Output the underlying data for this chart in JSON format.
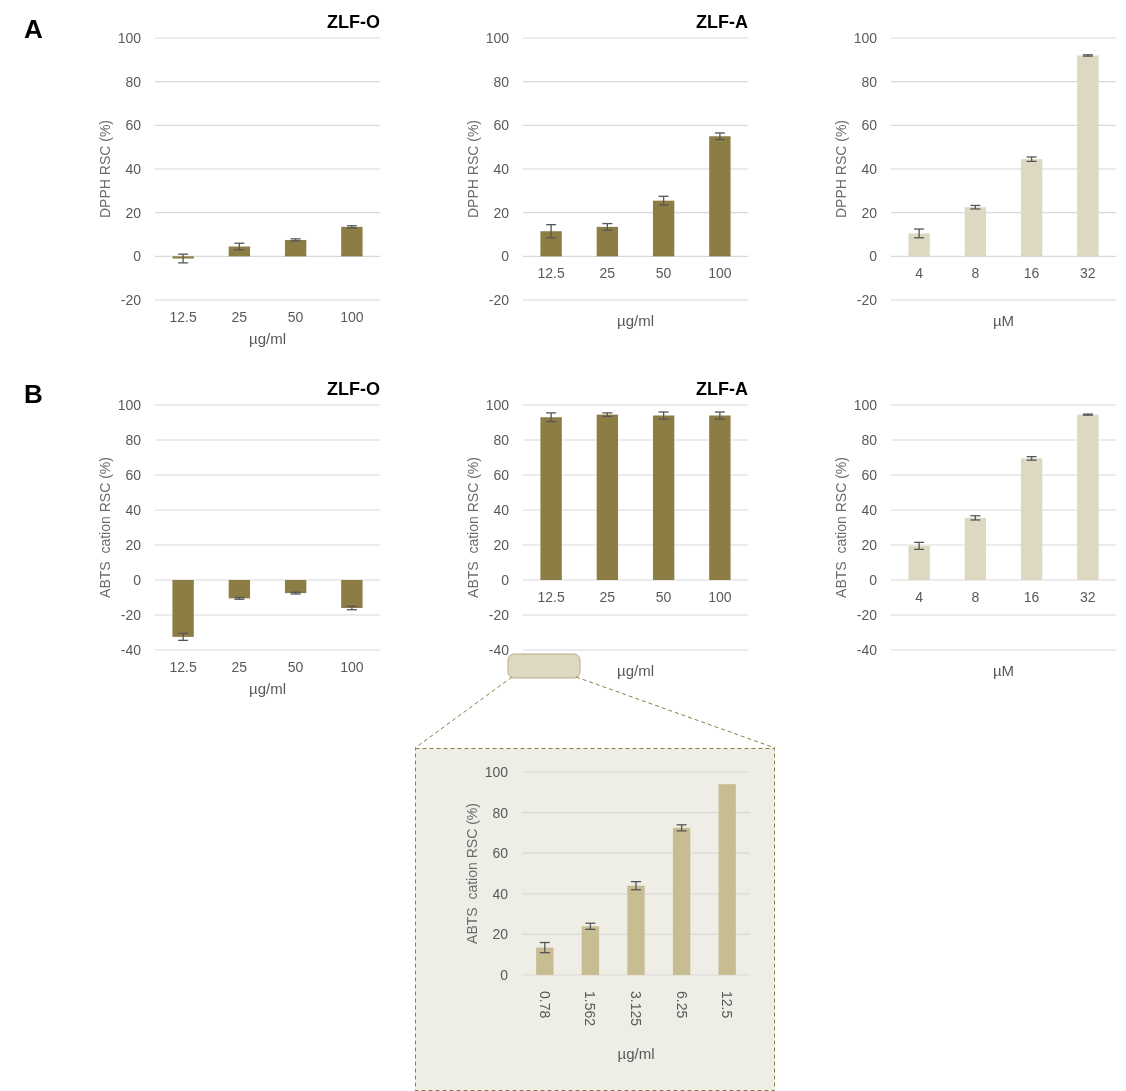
{
  "chart_data": [
    {
      "type": "bar",
      "title": "ZLF-O",
      "ylabel": "DPPH RSC (%)",
      "xlabel": "µg/ml",
      "annotations": [
        "A"
      ],
      "categories": [
        "12.5",
        "25",
        "50",
        "100"
      ],
      "values": [
        -1,
        4.5,
        7.5,
        13.5
      ],
      "errors": [
        2,
        1.5,
        0.5,
        0.5
      ],
      "color": "#8c7d45",
      "ylim": [
        -20,
        100
      ],
      "yticks": [
        -20,
        0,
        20,
        40,
        60,
        80,
        100
      ],
      "grid": "y"
    },
    {
      "type": "bar",
      "title": "ZLF-A",
      "ylabel": "DPPH RSC (%)",
      "xlabel": "µg/ml",
      "categories": [
        "12.5",
        "25",
        "50",
        "100"
      ],
      "values": [
        11.5,
        13.5,
        25.5,
        55
      ],
      "errors": [
        3,
        1.5,
        2,
        1.5
      ],
      "color": "#8c7d45",
      "ylim": [
        -20,
        100
      ],
      "yticks": [
        -20,
        0,
        20,
        40,
        60,
        80,
        100
      ],
      "grid": "y"
    },
    {
      "type": "bar",
      "ylabel": "DPPH RSC (%)",
      "xlabel": "µM",
      "categories": [
        "4",
        "8",
        "16",
        "32"
      ],
      "values": [
        10.5,
        22.5,
        44.5,
        92
      ],
      "errors": [
        2,
        0.8,
        1,
        0.3
      ],
      "color": "#ddd8c2",
      "ylim": [
        -20,
        100
      ],
      "yticks": [
        -20,
        0,
        20,
        40,
        60,
        80,
        100
      ],
      "grid": "y"
    },
    {
      "type": "bar",
      "title": "ZLF-O",
      "ylabel": "ABTS  cation RSC (%)",
      "xlabel": "µg/ml",
      "annotations": [
        "B"
      ],
      "categories": [
        "12.5",
        "25",
        "50",
        "100"
      ],
      "values": [
        -32.5,
        -10.5,
        -7.5,
        -16
      ],
      "errors": [
        2,
        0.5,
        0.5,
        1
      ],
      "color": "#8c7d45",
      "ylim": [
        -40,
        100
      ],
      "yticks": [
        -40,
        -20,
        0,
        20,
        40,
        60,
        80,
        100
      ],
      "grid": "y"
    },
    {
      "type": "bar",
      "title": "ZLF-A",
      "ylabel": "ABTS  cation RSC (%)",
      "xlabel": "µg/ml",
      "categories": [
        "12.5",
        "25",
        "50",
        "100"
      ],
      "values": [
        93,
        94.5,
        94,
        94
      ],
      "errors": [
        2.5,
        1,
        2,
        2
      ],
      "color": "#8c7d45",
      "ylim": [
        -40,
        100
      ],
      "yticks": [
        -40,
        -20,
        0,
        20,
        40,
        60,
        80,
        100
      ],
      "grid": "y"
    },
    {
      "type": "bar",
      "ylabel": "ABTS  cation RSC (%)",
      "xlabel": "µM",
      "categories": [
        "4",
        "8",
        "16",
        "32"
      ],
      "values": [
        19.5,
        35.5,
        69.5,
        94.5
      ],
      "errors": [
        2,
        1.2,
        1,
        0.3
      ],
      "color": "#ddd8c2",
      "ylim": [
        -40,
        100
      ],
      "yticks": [
        -40,
        -20,
        0,
        20,
        40,
        60,
        80,
        100
      ],
      "grid": "y"
    },
    {
      "type": "bar",
      "ylabel": "ABTS  cation RSC (%)",
      "xlabel": "µg/ml",
      "categories": [
        "0.78",
        "1.562",
        "3.125",
        "6.25",
        "12.5"
      ],
      "values": [
        13.5,
        24,
        44,
        72.5,
        94
      ],
      "errors": [
        2.5,
        1.5,
        2,
        1.5,
        null
      ],
      "color": "#c8bd92",
      "ylim": [
        0,
        100
      ],
      "yticks": [
        0,
        20,
        40,
        60,
        80,
        100
      ],
      "grid": "y"
    }
  ]
}
